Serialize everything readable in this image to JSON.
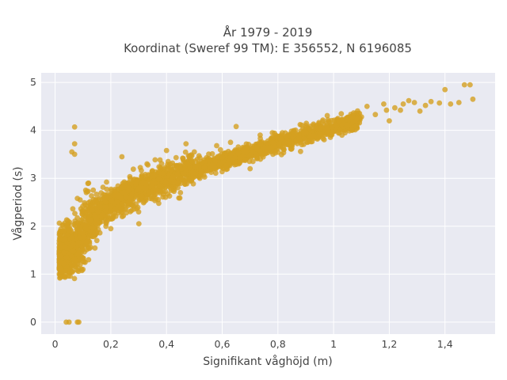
{
  "chart_data": {
    "type": "scatter",
    "title_line1": "År 1979 - 2019",
    "title_line2": "Koordinat (Sweref 99 TM): E 356552, N 6196085",
    "xlabel": "Signifikant våghöjd (m)",
    "ylabel": "Vågperiod (s)",
    "xlim": [
      -0.05,
      1.58
    ],
    "ylim": [
      -0.25,
      5.2
    ],
    "x_ticks": [
      0,
      0.2,
      0.4,
      0.6,
      0.8,
      1,
      1.2,
      1.4
    ],
    "x_tick_labels": [
      "0",
      "0,2",
      "0,4",
      "0,6",
      "0,8",
      "1",
      "1,2",
      "1,4"
    ],
    "y_ticks": [
      0,
      1,
      2,
      3,
      4,
      5
    ],
    "y_tick_labels": [
      "0",
      "1",
      "2",
      "3",
      "4",
      "5"
    ],
    "grid": true,
    "marker_color": "#D4A020",
    "plot_bg": "#E9EAF2",
    "trend_points": [
      {
        "x": 0.02,
        "y": 1.45
      },
      {
        "x": 0.05,
        "y": 1.5
      },
      {
        "x": 0.08,
        "y": 1.62
      },
      {
        "x": 0.1,
        "y": 1.85
      },
      {
        "x": 0.13,
        "y": 2.12
      },
      {
        "x": 0.16,
        "y": 2.3
      },
      {
        "x": 0.2,
        "y": 2.45
      },
      {
        "x": 0.25,
        "y": 2.62
      },
      {
        "x": 0.3,
        "y": 2.76
      },
      {
        "x": 0.35,
        "y": 2.9
      },
      {
        "x": 0.4,
        "y": 3.0
      },
      {
        "x": 0.5,
        "y": 3.18
      },
      {
        "x": 0.6,
        "y": 3.35
      },
      {
        "x": 0.7,
        "y": 3.52
      },
      {
        "x": 0.8,
        "y": 3.72
      },
      {
        "x": 0.9,
        "y": 3.9
      },
      {
        "x": 1.0,
        "y": 4.05
      },
      {
        "x": 1.1,
        "y": 4.25
      },
      {
        "x": 1.2,
        "y": 4.45
      },
      {
        "x": 1.3,
        "y": 4.6
      },
      {
        "x": 1.4,
        "y": 4.65
      },
      {
        "x": 1.5,
        "y": 4.8
      }
    ],
    "points": [
      {
        "x": 0.07,
        "y": 4.07
      },
      {
        "x": 0.07,
        "y": 3.72
      },
      {
        "x": 0.06,
        "y": 3.55
      },
      {
        "x": 0.07,
        "y": 3.5
      },
      {
        "x": 0.08,
        "y": 2.58
      },
      {
        "x": 0.04,
        "y": 0.0
      },
      {
        "x": 0.05,
        "y": 0.0
      },
      {
        "x": 0.08,
        "y": 0.0
      },
      {
        "x": 0.085,
        "y": 0.0
      },
      {
        "x": 0.03,
        "y": 1.22
      },
      {
        "x": 0.02,
        "y": 1.25
      },
      {
        "x": 0.08,
        "y": 1.08
      },
      {
        "x": 0.1,
        "y": 1.1
      },
      {
        "x": 0.24,
        "y": 3.45
      },
      {
        "x": 0.4,
        "y": 3.58
      },
      {
        "x": 0.47,
        "y": 3.72
      },
      {
        "x": 0.65,
        "y": 4.08
      },
      {
        "x": 0.58,
        "y": 3.68
      },
      {
        "x": 1.12,
        "y": 4.5
      },
      {
        "x": 1.15,
        "y": 4.33
      },
      {
        "x": 1.18,
        "y": 4.55
      },
      {
        "x": 1.2,
        "y": 4.2
      },
      {
        "x": 1.22,
        "y": 4.47
      },
      {
        "x": 1.25,
        "y": 4.55
      },
      {
        "x": 1.27,
        "y": 4.62
      },
      {
        "x": 1.29,
        "y": 4.58
      },
      {
        "x": 1.24,
        "y": 4.42
      },
      {
        "x": 1.31,
        "y": 4.4
      },
      {
        "x": 1.33,
        "y": 4.52
      },
      {
        "x": 1.4,
        "y": 4.85
      },
      {
        "x": 1.42,
        "y": 4.55
      },
      {
        "x": 1.45,
        "y": 4.58
      },
      {
        "x": 1.47,
        "y": 4.95
      },
      {
        "x": 1.49,
        "y": 4.95
      },
      {
        "x": 1.5,
        "y": 4.65
      },
      {
        "x": 1.35,
        "y": 4.6
      },
      {
        "x": 1.38,
        "y": 4.57
      },
      {
        "x": 1.19,
        "y": 4.42
      },
      {
        "x": 1.1,
        "y": 4.28
      },
      {
        "x": 1.07,
        "y": 4.18
      },
      {
        "x": 1.03,
        "y": 3.9
      },
      {
        "x": 1.05,
        "y": 4.1
      },
      {
        "x": 0.98,
        "y": 4.22
      },
      {
        "x": 0.9,
        "y": 4.1
      },
      {
        "x": 0.95,
        "y": 3.92
      },
      {
        "x": 0.85,
        "y": 3.62
      },
      {
        "x": 0.88,
        "y": 4.12
      },
      {
        "x": 0.12,
        "y": 2.9
      },
      {
        "x": 0.1,
        "y": 2.3
      },
      {
        "x": 0.09,
        "y": 2.55
      },
      {
        "x": 0.11,
        "y": 2.75
      },
      {
        "x": 0.02,
        "y": 1.55
      },
      {
        "x": 0.03,
        "y": 1.9
      },
      {
        "x": 0.09,
        "y": 1.2
      },
      {
        "x": 0.12,
        "y": 1.3
      },
      {
        "x": 0.15,
        "y": 1.7
      },
      {
        "x": 0.2,
        "y": 1.95
      },
      {
        "x": 0.3,
        "y": 2.3
      },
      {
        "x": 0.45,
        "y": 2.7
      },
      {
        "x": 0.7,
        "y": 3.2
      },
      {
        "x": 0.33,
        "y": 3.3
      },
      {
        "x": 0.5,
        "y": 3.55
      },
      {
        "x": 0.63,
        "y": 3.75
      },
      {
        "x": 0.78,
        "y": 3.95
      }
    ]
  }
}
